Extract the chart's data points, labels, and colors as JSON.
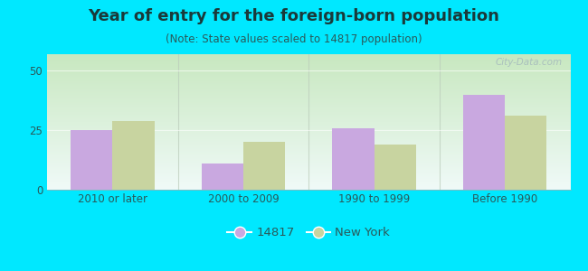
{
  "title": "Year of entry for the foreign-born population",
  "subtitle": "(Note: State values scaled to 14817 population)",
  "categories": [
    "2010 or later",
    "2000 to 2009",
    "1990 to 1999",
    "Before 1990"
  ],
  "values_14817": [
    25,
    11,
    26,
    40
  ],
  "values_ny": [
    29,
    20,
    19,
    31
  ],
  "bar_color_14817": "#c9a8e0",
  "bar_color_ny": "#c8d4a0",
  "background_outer": "#00e8ff",
  "background_top": "#f0faf8",
  "background_bottom": "#c8e8c0",
  "ylim": [
    0,
    57
  ],
  "yticks": [
    0,
    25,
    50
  ],
  "bar_width": 0.32,
  "legend_label_1": "14817",
  "legend_label_2": "New York",
  "watermark": "City-Data.com",
  "title_fontsize": 13,
  "subtitle_fontsize": 8.5,
  "tick_fontsize": 8.5,
  "legend_fontsize": 9.5,
  "title_color": "#1a3a3a",
  "subtitle_color": "#2a5a5a",
  "tick_color": "#2a5a5a"
}
